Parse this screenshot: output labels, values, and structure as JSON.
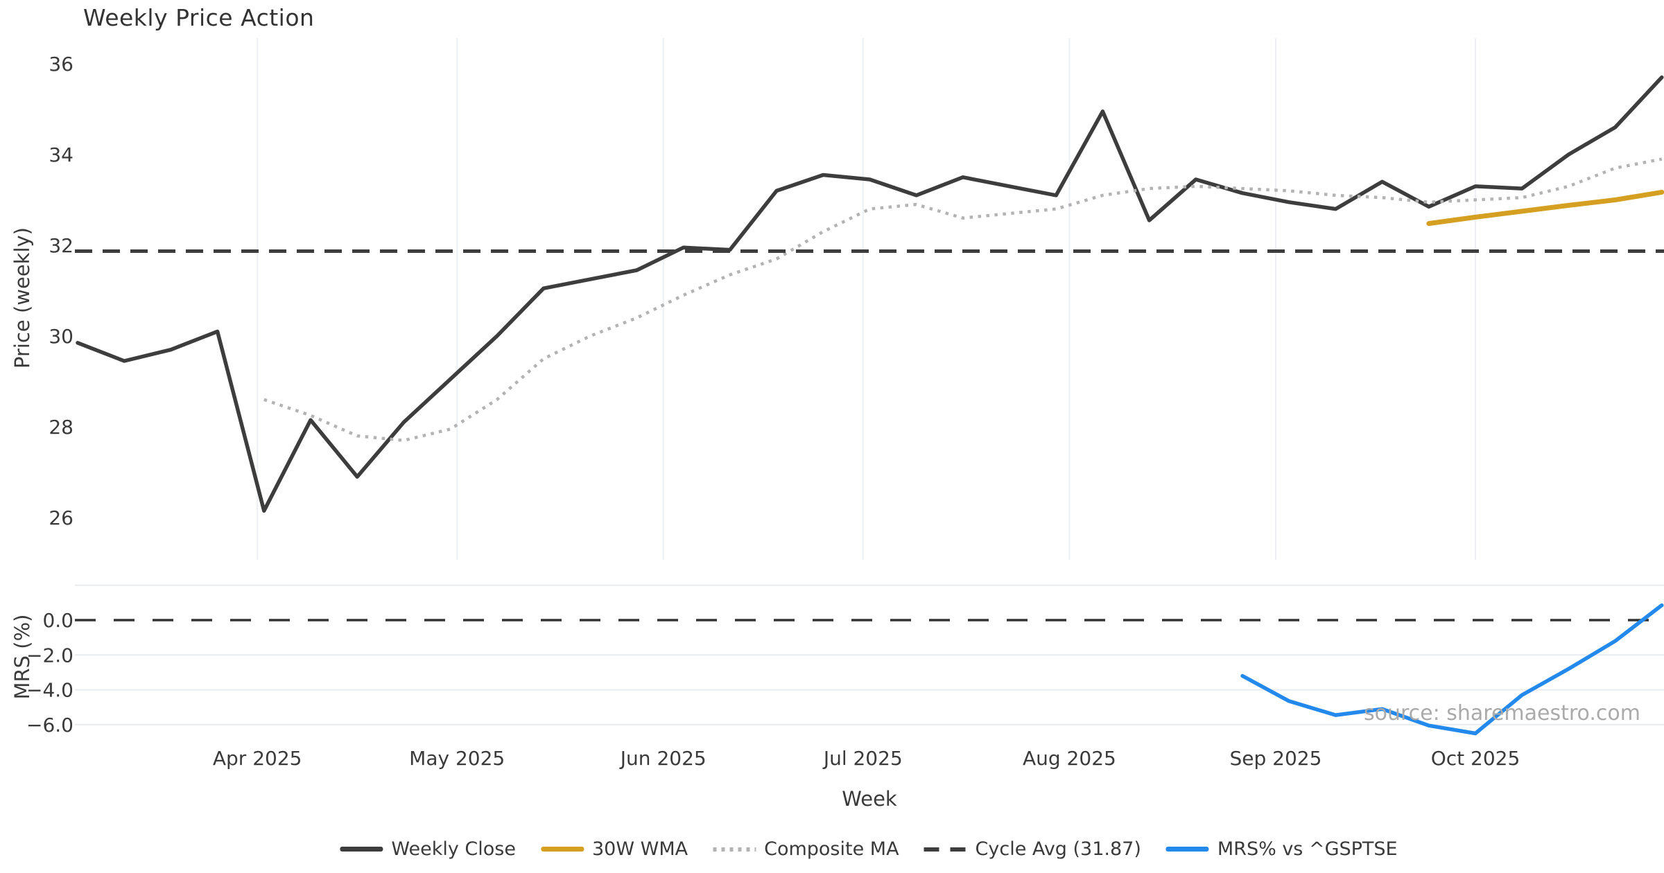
{
  "title": "Weekly Price Action",
  "source": "source: sharemaestro.com",
  "legend": {
    "items": [
      {
        "label": "Weekly Close",
        "style": "solid",
        "color": "#3d3d3d"
      },
      {
        "label": "30W WMA",
        "style": "solid",
        "color": "#d5a021"
      },
      {
        "label": "Composite MA",
        "style": "dotted",
        "color": "#b3b3b3"
      },
      {
        "label": "Cycle Avg (31.87)",
        "style": "dashed",
        "color": "#3d3d3d"
      },
      {
        "label": "MRS% vs ^GSPTSE",
        "style": "solid",
        "color": "#2489ec"
      }
    ]
  },
  "chart_data": {
    "type": "line",
    "title": "Weekly Price Action",
    "x_label": "Week",
    "source": "source: sharemaestro.com",
    "cycle_avg": 31.87,
    "colors": {
      "weekly_close": "#3d3d3d",
      "wma30": "#d5a021",
      "composite_ma": "#b3b3b3",
      "cycle_avg": "#3d3d3d",
      "mrs": "#2489ec",
      "zero_line": "#333333",
      "grid_vertical": "#edf0f4",
      "grid_horizontal": "#e9ecef",
      "tick_text": "#3a3a3a",
      "source_text": "#aaaaaa"
    },
    "panels": [
      {
        "y_label": "Price (weekly)",
        "ylim": [
          25.5,
          36.6
        ],
        "y_ticks": [
          {
            "label": "36",
            "value": 36
          },
          {
            "label": "34",
            "value": 34
          },
          {
            "label": "32",
            "value": 32
          },
          {
            "label": "30",
            "value": 30
          },
          {
            "label": "28",
            "value": 28
          },
          {
            "label": "26",
            "value": 26
          }
        ]
      },
      {
        "y_label": "MRS (%)",
        "ylim": [
          -7.2,
          2.0
        ],
        "y_ticks": [
          {
            "label": "0.0",
            "value": 0
          },
          {
            "label": "−2.0",
            "value": -2
          },
          {
            "label": "−4.0",
            "value": -4
          },
          {
            "label": "−6.0",
            "value": -6
          }
        ],
        "unlabeled_gridlines": [
          2,
          -2,
          -4,
          -6
        ],
        "zero_dashed_line": 0
      }
    ],
    "x_ticks": [
      {
        "label": "Apr 2025",
        "week": 3.857
      },
      {
        "label": "May 2025",
        "week": 8.143
      },
      {
        "label": "Jun 2025",
        "week": 12.571
      },
      {
        "label": "Jul 2025",
        "week": 16.857
      },
      {
        "label": "Aug 2025",
        "week": 21.286
      },
      {
        "label": "Sep 2025",
        "week": 25.714
      },
      {
        "label": "Oct 2025",
        "week": 30.0
      }
    ],
    "weeks": [
      "Mar 5 2025",
      "Mar 12 2025",
      "Mar 19 2025",
      "Mar 26 2025",
      "Apr 2 2025",
      "Apr 9 2025",
      "Apr 16 2025",
      "Apr 23 2025",
      "Apr 30 2025",
      "May 7 2025",
      "May 14 2025",
      "May 21 2025",
      "May 28 2025",
      "Jun 4 2025",
      "Jun 11 2025",
      "Jun 18 2025",
      "Jun 25 2025",
      "Jul 2 2025",
      "Jul 9 2025",
      "Jul 16 2025",
      "Jul 23 2025",
      "Jul 30 2025",
      "Aug 6 2025",
      "Aug 13 2025",
      "Aug 20 2025",
      "Aug 27 2025",
      "Sep 3 2025",
      "Sep 10 2025",
      "Sep 17 2025",
      "Sep 24 2025",
      "Oct 1 2025",
      "Oct 8 2025",
      "Oct 15 2025",
      "Oct 22 2025",
      "Oct 29 2025"
    ],
    "series": [
      {
        "name": "Weekly Close",
        "panel": 0,
        "style": "solid",
        "color": "#3d3d3d",
        "width": 5.5,
        "values": [
          29.85,
          29.45,
          29.7,
          30.1,
          26.15,
          28.15,
          26.9,
          28.1,
          29.05,
          30.0,
          31.05,
          31.25,
          31.45,
          31.95,
          31.9,
          33.2,
          33.55,
          33.45,
          33.1,
          33.5,
          33.3,
          33.1,
          34.95,
          32.55,
          33.45,
          33.15,
          32.95,
          32.8,
          33.4,
          32.85,
          33.3,
          33.25,
          34.0,
          34.6,
          35.7
        ]
      },
      {
        "name": "30W WMA",
        "panel": 0,
        "style": "solid",
        "color": "#d5a021",
        "width": 7,
        "values": [
          null,
          null,
          null,
          null,
          null,
          null,
          null,
          null,
          null,
          null,
          null,
          null,
          null,
          null,
          null,
          null,
          null,
          null,
          null,
          null,
          null,
          null,
          null,
          null,
          null,
          null,
          null,
          null,
          null,
          32.48,
          32.62,
          32.75,
          32.88,
          33.0,
          33.17
        ]
      },
      {
        "name": "Composite MA",
        "panel": 0,
        "style": "dotted",
        "color": "#b3b3b3",
        "width": 4.5,
        "values": [
          null,
          null,
          null,
          null,
          28.6,
          28.25,
          27.8,
          27.7,
          27.95,
          28.6,
          29.5,
          30.0,
          30.4,
          30.9,
          31.35,
          31.7,
          32.3,
          32.8,
          32.9,
          32.6,
          32.7,
          32.8,
          33.1,
          33.25,
          33.3,
          33.25,
          33.2,
          33.1,
          33.05,
          32.95,
          33.0,
          33.05,
          33.3,
          33.7,
          33.9
        ]
      },
      {
        "name": "Cycle Avg (31.87)",
        "panel": 0,
        "style": "dashed",
        "color": "#3d3d3d",
        "width": 5,
        "hline": 31.87
      },
      {
        "name": "MRS% vs ^GSPTSE",
        "panel": 1,
        "style": "solid",
        "color": "#2489ec",
        "width": 5.5,
        "values": [
          null,
          null,
          null,
          null,
          null,
          null,
          null,
          null,
          null,
          null,
          null,
          null,
          null,
          null,
          null,
          null,
          null,
          null,
          null,
          null,
          null,
          null,
          null,
          null,
          null,
          -3.2,
          -4.65,
          -5.45,
          -5.1,
          -6.05,
          -6.5,
          -4.3,
          -2.8,
          -1.2,
          0.85
        ]
      }
    ]
  }
}
